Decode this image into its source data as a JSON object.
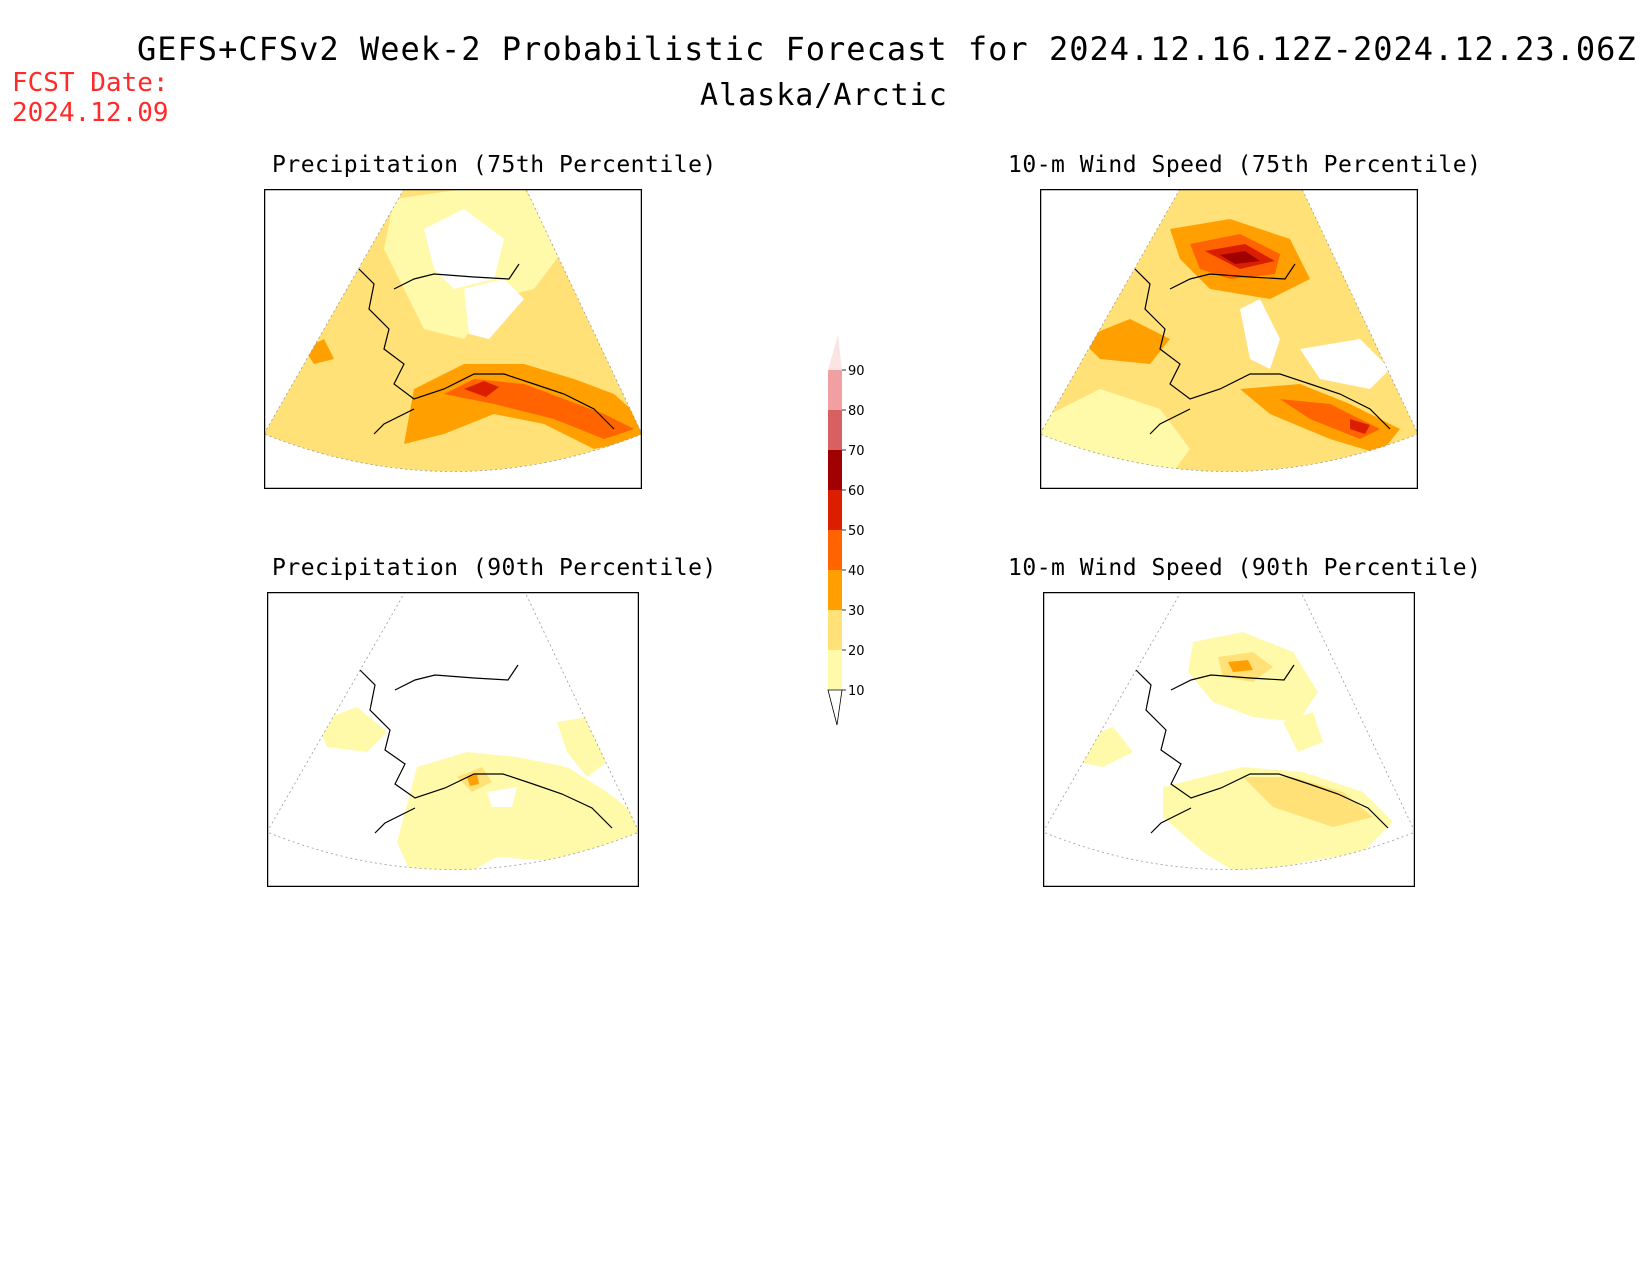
{
  "title": "GEFS+CFSv2 Week-2 Probabilistic Forecast for 2024.12.16.12Z-2024.12.23.06Z",
  "subtitle": "Alaska/Arctic",
  "fcst_date_label": "FCST Date:",
  "fcst_date_value": "2024.12.09",
  "panels": [
    {
      "id": "precip75",
      "title": "Precipitation (75th Percentile)"
    },
    {
      "id": "wind75",
      "title": "10-m Wind Speed (75th Percentile)"
    },
    {
      "id": "precip90",
      "title": "Precipitation (90th Percentile)"
    },
    {
      "id": "wind90",
      "title": "10-m Wind Speed (90th Percentile)"
    }
  ],
  "colorbar": {
    "levels": [
      "90",
      "80",
      "70",
      "60",
      "50",
      "40",
      "30",
      "20",
      "10"
    ],
    "colors": [
      "#fbe4e4",
      "#f0a0a0",
      "#d96060",
      "#a00000",
      "#dc1e00",
      "#ff6400",
      "#ffa000",
      "#ffe178",
      "#fffaaa"
    ]
  },
  "colors": {
    "c10": "#fffaaa",
    "c20": "#ffe178",
    "c30": "#ffa000",
    "c40": "#ff6400",
    "c50": "#dc1e00",
    "c60": "#a00000",
    "fcst_date": "#ff2a2a"
  }
}
